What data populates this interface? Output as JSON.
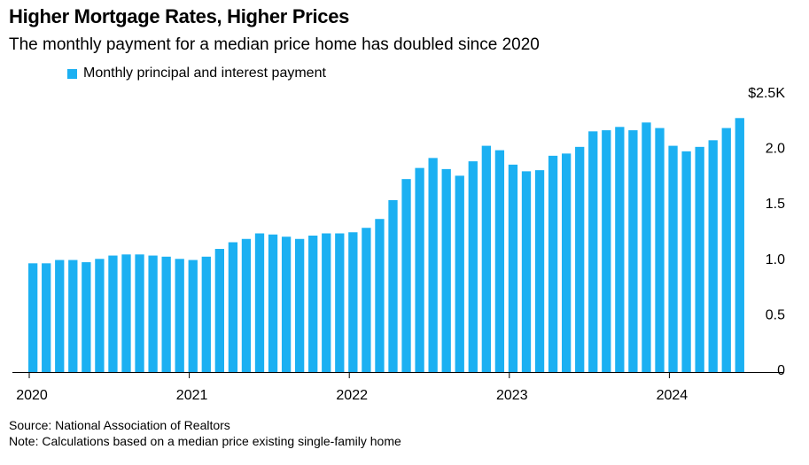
{
  "chart_data": {
    "type": "bar",
    "title": "Higher Mortgage Rates, Higher Prices",
    "subtitle": "The monthly payment for a median price home has doubled since 2020",
    "series": [
      {
        "name": "Monthly principal and interest payment",
        "color": "#1bb0f2",
        "values": [
          0.98,
          0.98,
          1.01,
          1.01,
          0.99,
          1.02,
          1.05,
          1.06,
          1.06,
          1.05,
          1.04,
          1.02,
          1.01,
          1.04,
          1.11,
          1.17,
          1.2,
          1.25,
          1.24,
          1.22,
          1.2,
          1.23,
          1.25,
          1.25,
          1.26,
          1.3,
          1.38,
          1.55,
          1.74,
          1.84,
          1.93,
          1.83,
          1.77,
          1.9,
          2.04,
          2.0,
          1.87,
          1.81,
          1.82,
          1.95,
          1.97,
          2.03,
          2.17,
          2.18,
          2.21,
          2.18,
          2.25,
          2.2,
          2.04,
          1.99,
          2.03,
          2.09,
          2.2,
          2.29
        ]
      }
    ],
    "x_start": "2020-01",
    "x_ticks": [
      "2020",
      "2021",
      "2022",
      "2023",
      "2024"
    ],
    "y_ticks": [
      "0",
      "0.5",
      "1.0",
      "1.5",
      "2.0",
      "$2.5K"
    ],
    "ylim": [
      0,
      2.5
    ],
    "legend_position": "top-left",
    "grid": false
  },
  "footnotes": {
    "source": "Source: National Association of Realtors",
    "note": "Note: Calculations based on a median price existing single-family home"
  }
}
